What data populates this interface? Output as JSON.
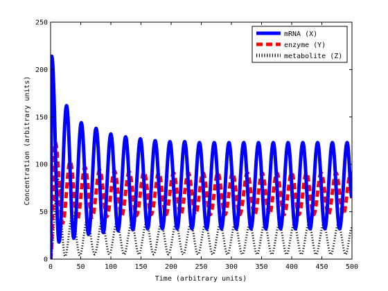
{
  "chart_data": {
    "type": "line",
    "title": "",
    "xlabel": "Time (arbitrary units)",
    "ylabel": "Concentration (arbitrary units)",
    "xlim": [
      0,
      500
    ],
    "ylim": [
      0,
      250
    ],
    "xticks": [
      "0",
      "50",
      "100",
      "150",
      "200",
      "250",
      "300",
      "350",
      "400",
      "450",
      "500"
    ],
    "yticks": [
      "0",
      "50",
      "100",
      "150",
      "200",
      "250"
    ],
    "grid": false,
    "legend_position": "top-right",
    "oscillation_period": 24.5,
    "series": [
      {
        "name": "mRNA (X)",
        "color": "#0000ff",
        "style": "solid",
        "peaks": [
          {
            "t": 2,
            "v": 214
          },
          {
            "t": 26.5,
            "v": 162
          },
          {
            "t": 51,
            "v": 144
          },
          {
            "t": 75.5,
            "v": 138
          },
          {
            "t": 100,
            "v": 132
          },
          {
            "t": 124.5,
            "v": 129
          },
          {
            "t": 149,
            "v": 127
          },
          {
            "t": 173.5,
            "v": 125
          },
          {
            "t": 198,
            "v": 124
          },
          {
            "t": 222.5,
            "v": 124
          },
          {
            "t": 247,
            "v": 123
          },
          {
            "t": 271.5,
            "v": 123
          },
          {
            "t": 296,
            "v": 123
          },
          {
            "t": 320.5,
            "v": 123
          },
          {
            "t": 345,
            "v": 123
          },
          {
            "t": 369.5,
            "v": 123
          },
          {
            "t": 394,
            "v": 123
          },
          {
            "t": 418.5,
            "v": 123
          },
          {
            "t": 443,
            "v": 123
          },
          {
            "t": 467.5,
            "v": 123
          },
          {
            "t": 492,
            "v": 123
          }
        ],
        "troughs": [
          {
            "t": 14,
            "v": 18
          },
          {
            "t": 38.5,
            "v": 22
          },
          {
            "t": 63,
            "v": 26
          },
          {
            "t": 87.5,
            "v": 28
          },
          {
            "t": 112,
            "v": 30
          },
          {
            "t": 136.5,
            "v": 31
          },
          {
            "t": 161,
            "v": 32
          },
          {
            "t": 185.5,
            "v": 32
          },
          {
            "t": 210,
            "v": 32
          },
          {
            "t": 234.5,
            "v": 32
          },
          {
            "t": 259,
            "v": 32
          },
          {
            "t": 283.5,
            "v": 32
          },
          {
            "t": 308,
            "v": 32
          },
          {
            "t": 332.5,
            "v": 32
          },
          {
            "t": 357,
            "v": 32
          },
          {
            "t": 381.5,
            "v": 32
          },
          {
            "t": 406,
            "v": 32
          },
          {
            "t": 430.5,
            "v": 32
          },
          {
            "t": 455,
            "v": 32
          },
          {
            "t": 479.5,
            "v": 32
          }
        ]
      },
      {
        "name": "enzyme (Y)",
        "color": "#ff0000",
        "style": "dashed",
        "peaks": [
          {
            "t": 8,
            "v": 123
          },
          {
            "t": 32.5,
            "v": 103
          },
          {
            "t": 57,
            "v": 97
          },
          {
            "t": 81.5,
            "v": 94
          },
          {
            "t": 106,
            "v": 93
          },
          {
            "t": 130.5,
            "v": 92
          },
          {
            "t": 155,
            "v": 92
          },
          {
            "t": 179.5,
            "v": 91
          },
          {
            "t": 204,
            "v": 91
          },
          {
            "t": 228.5,
            "v": 91
          },
          {
            "t": 253,
            "v": 91
          },
          {
            "t": 277.5,
            "v": 91
          },
          {
            "t": 302,
            "v": 91
          },
          {
            "t": 326.5,
            "v": 91
          },
          {
            "t": 351,
            "v": 91
          },
          {
            "t": 375.5,
            "v": 91
          },
          {
            "t": 400,
            "v": 91
          },
          {
            "t": 424.5,
            "v": 91
          },
          {
            "t": 449,
            "v": 91
          },
          {
            "t": 473.5,
            "v": 91
          },
          {
            "t": 498,
            "v": 91
          }
        ],
        "troughs": [
          {
            "t": 20,
            "v": 38
          },
          {
            "t": 44.5,
            "v": 42
          },
          {
            "t": 69,
            "v": 44
          },
          {
            "t": 93.5,
            "v": 45
          },
          {
            "t": 118,
            "v": 46
          },
          {
            "t": 142.5,
            "v": 46
          },
          {
            "t": 167,
            "v": 47
          },
          {
            "t": 191.5,
            "v": 47
          },
          {
            "t": 216,
            "v": 47
          },
          {
            "t": 240.5,
            "v": 47
          },
          {
            "t": 265,
            "v": 47
          },
          {
            "t": 289.5,
            "v": 47
          },
          {
            "t": 314,
            "v": 47
          },
          {
            "t": 338.5,
            "v": 47
          },
          {
            "t": 363,
            "v": 47
          },
          {
            "t": 387.5,
            "v": 47
          },
          {
            "t": 412,
            "v": 47
          },
          {
            "t": 436.5,
            "v": 47
          },
          {
            "t": 461,
            "v": 47
          },
          {
            "t": 485.5,
            "v": 47
          }
        ]
      },
      {
        "name": "metabolite (Z)",
        "color": "#000000",
        "style": "dotted",
        "peaks": [
          {
            "t": 12,
            "v": 85
          },
          {
            "t": 36.5,
            "v": 48
          },
          {
            "t": 61,
            "v": 42
          },
          {
            "t": 85.5,
            "v": 40
          },
          {
            "t": 110,
            "v": 39
          },
          {
            "t": 134.5,
            "v": 38
          },
          {
            "t": 159,
            "v": 38
          },
          {
            "t": 183.5,
            "v": 37
          },
          {
            "t": 208,
            "v": 37
          },
          {
            "t": 232.5,
            "v": 37
          },
          {
            "t": 257,
            "v": 37
          },
          {
            "t": 281.5,
            "v": 37
          },
          {
            "t": 306,
            "v": 37
          },
          {
            "t": 330.5,
            "v": 37
          },
          {
            "t": 355,
            "v": 37
          },
          {
            "t": 379.5,
            "v": 37
          },
          {
            "t": 404,
            "v": 37
          },
          {
            "t": 428.5,
            "v": 37
          },
          {
            "t": 453,
            "v": 37
          },
          {
            "t": 477.5,
            "v": 37
          }
        ],
        "troughs": [
          {
            "t": 24,
            "v": 3
          },
          {
            "t": 48.5,
            "v": 4
          },
          {
            "t": 73,
            "v": 5
          },
          {
            "t": 97.5,
            "v": 5
          },
          {
            "t": 122,
            "v": 5
          },
          {
            "t": 146.5,
            "v": 5
          },
          {
            "t": 171,
            "v": 5
          },
          {
            "t": 195.5,
            "v": 5
          },
          {
            "t": 220,
            "v": 5
          },
          {
            "t": 244.5,
            "v": 5
          },
          {
            "t": 269,
            "v": 5
          },
          {
            "t": 293.5,
            "v": 5
          },
          {
            "t": 318,
            "v": 5
          },
          {
            "t": 342.5,
            "v": 5
          },
          {
            "t": 367,
            "v": 5
          },
          {
            "t": 391.5,
            "v": 5
          },
          {
            "t": 416,
            "v": 5
          },
          {
            "t": 440.5,
            "v": 5
          },
          {
            "t": 465,
            "v": 5
          },
          {
            "t": 489.5,
            "v": 5
          }
        ]
      }
    ]
  }
}
